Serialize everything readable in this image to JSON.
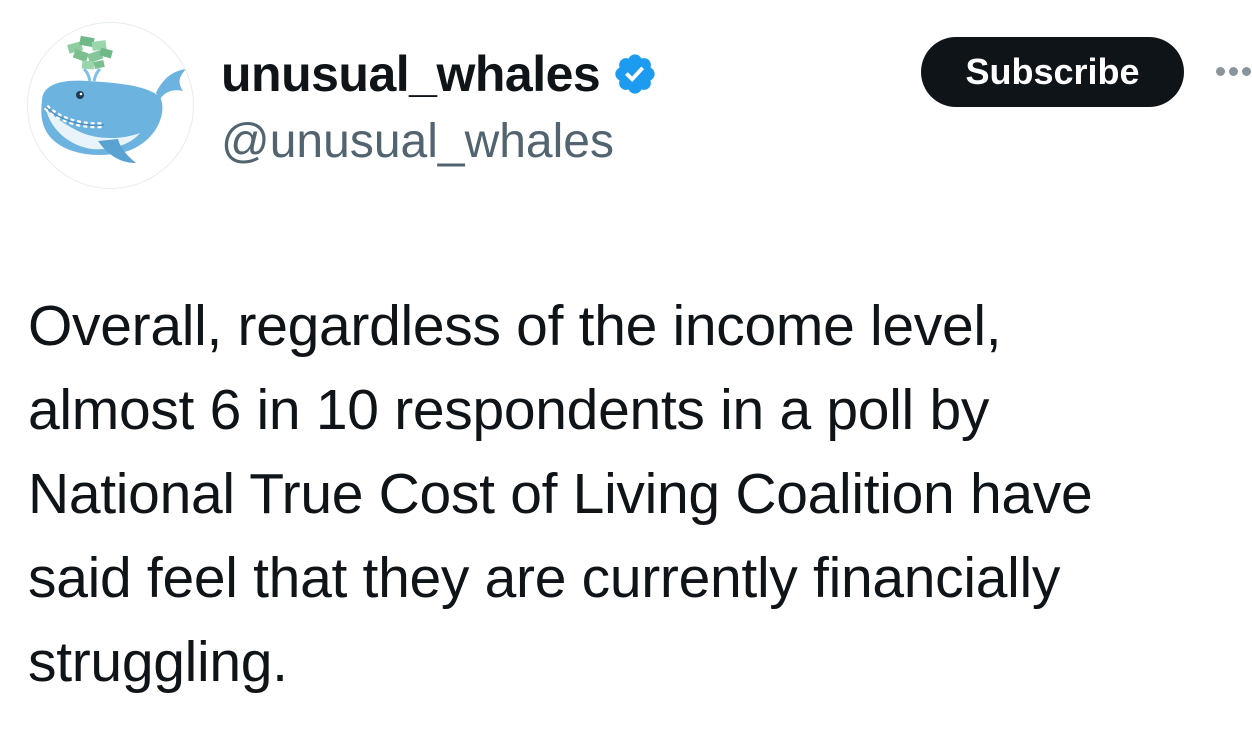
{
  "author": {
    "display_name": "unusual_whales",
    "handle": "@unusual_whales",
    "verified": true,
    "avatar_icon": "whale-with-money-icon",
    "badge_color": "#1d9bf0"
  },
  "actions": {
    "subscribe_label": "Subscribe",
    "more_icon": "more-dots-icon"
  },
  "tweet": {
    "text": "Overall, regardless of the income level,\nalmost 6 in 10 respondents in a poll by\nNational True Cost of Living Coalition have\nsaid feel that they are currently financially\nstruggling."
  },
  "colors": {
    "text": "#0f1419",
    "secondary_text": "#536471",
    "button_bg": "#0f1419",
    "button_text": "#ffffff",
    "whale_blue": "#6db3e0",
    "money_green": "#7bbf8f"
  }
}
